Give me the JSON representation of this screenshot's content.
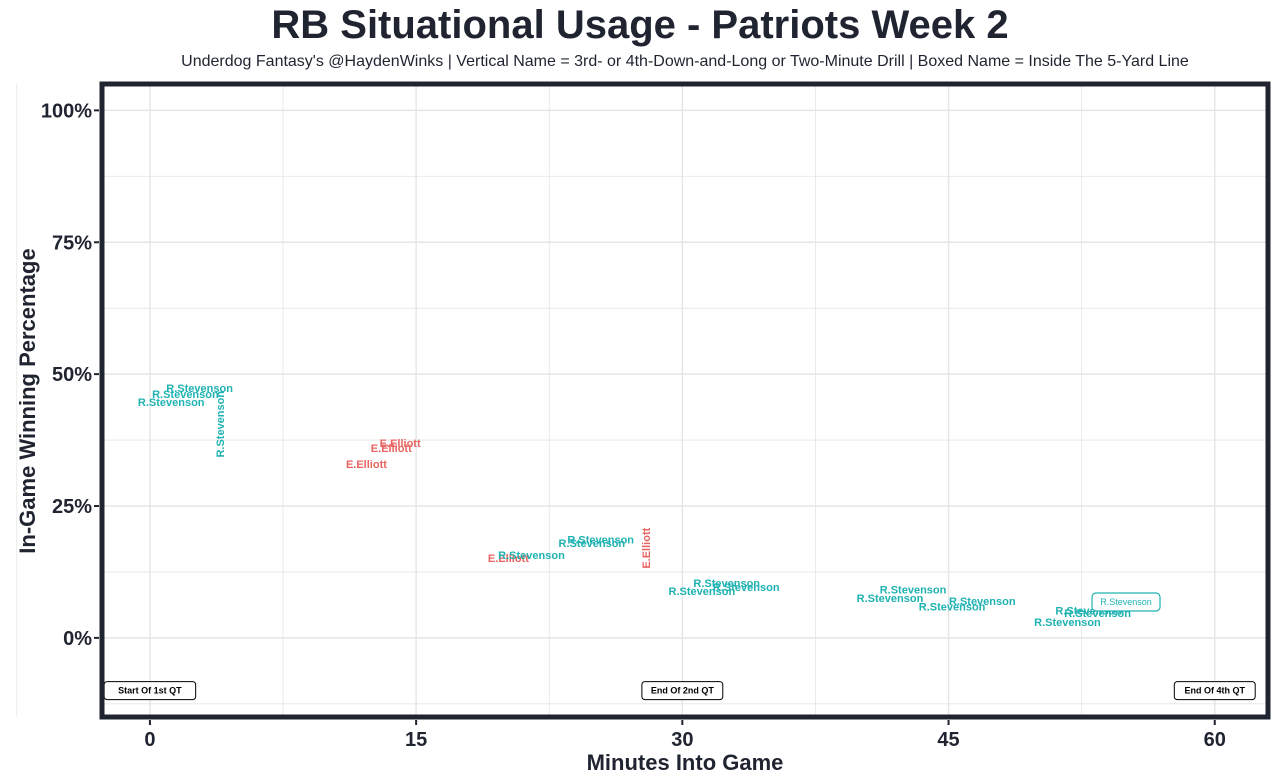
{
  "chart_data": {
    "type": "scatter",
    "title": "RB Situational Usage - Patriots Week 2",
    "subtitle": "Underdog Fantasy's @HaydenWinks | Vertical Name = 3rd- or 4th-Down-and-Long or Two-Minute Drill | Boxed Name = Inside The 5-Yard Line",
    "xlabel": "Minutes Into Game",
    "ylabel": "In-Game Winning Percentage",
    "xlim": [
      -2.7,
      63
    ],
    "ylim": [
      -15,
      105
    ],
    "x_ticks": [
      0,
      15,
      30,
      45,
      60
    ],
    "x_tick_labels": [
      "0",
      "15",
      "30",
      "45",
      "60"
    ],
    "y_ticks": [
      0,
      25,
      50,
      75,
      100
    ],
    "y_tick_labels": [
      "0%",
      "25%",
      "50%",
      "75%",
      "100%"
    ],
    "grid": true,
    "colors": {
      "R.Stevenson": "#20b2b2",
      "E.Elliott": "#e86461",
      "frame": "#1f2430",
      "grid": "#e5e5e5"
    },
    "points": [
      {
        "player": "R.Stevenson",
        "x": 1.2,
        "y": 44.5,
        "style": "normal"
      },
      {
        "player": "R.Stevenson",
        "x": 2.0,
        "y": 46.0,
        "style": "normal"
      },
      {
        "player": "R.Stevenson",
        "x": 2.8,
        "y": 47.2,
        "style": "normal"
      },
      {
        "player": "R.Stevenson",
        "x": 4.0,
        "y": 40.5,
        "style": "vertical"
      },
      {
        "player": "E.Elliott",
        "x": 12.2,
        "y": 32.8,
        "style": "normal"
      },
      {
        "player": "E.Elliott",
        "x": 13.6,
        "y": 35.8,
        "style": "normal"
      },
      {
        "player": "E.Elliott",
        "x": 14.1,
        "y": 36.8,
        "style": "normal"
      },
      {
        "player": "E.Elliott",
        "x": 20.2,
        "y": 15.0,
        "style": "normal"
      },
      {
        "player": "R.Stevenson",
        "x": 21.5,
        "y": 15.5,
        "style": "normal"
      },
      {
        "player": "R.Stevenson",
        "x": 24.9,
        "y": 17.8,
        "style": "normal"
      },
      {
        "player": "R.Stevenson",
        "x": 25.4,
        "y": 18.5,
        "style": "normal"
      },
      {
        "player": "E.Elliott",
        "x": 28.0,
        "y": 17.0,
        "style": "vertical"
      },
      {
        "player": "R.Stevenson",
        "x": 31.1,
        "y": 8.7,
        "style": "normal"
      },
      {
        "player": "R.Stevenson",
        "x": 32.5,
        "y": 10.2,
        "style": "normal"
      },
      {
        "player": "R.Stevenson",
        "x": 33.6,
        "y": 9.5,
        "style": "normal"
      },
      {
        "player": "R.Stevenson",
        "x": 41.7,
        "y": 7.4,
        "style": "normal"
      },
      {
        "player": "R.Stevenson",
        "x": 43.0,
        "y": 9.0,
        "style": "normal"
      },
      {
        "player": "R.Stevenson",
        "x": 45.2,
        "y": 5.8,
        "style": "normal"
      },
      {
        "player": "R.Stevenson",
        "x": 46.9,
        "y": 6.8,
        "style": "normal"
      },
      {
        "player": "R.Stevenson",
        "x": 51.7,
        "y": 2.8,
        "style": "normal"
      },
      {
        "player": "R.Stevenson",
        "x": 52.9,
        "y": 5.0,
        "style": "normal"
      },
      {
        "player": "R.Stevenson",
        "x": 53.4,
        "y": 4.5,
        "style": "normal"
      },
      {
        "player": "R.Stevenson",
        "x": 55.0,
        "y": 6.8,
        "style": "boxed"
      }
    ],
    "annotations": [
      {
        "text": "Start Of 1st QT",
        "x": 0,
        "y": -10
      },
      {
        "text": "End Of 2nd QT",
        "x": 30,
        "y": -10
      },
      {
        "text": "End Of 4th QT",
        "x": 60,
        "y": -10
      }
    ]
  }
}
